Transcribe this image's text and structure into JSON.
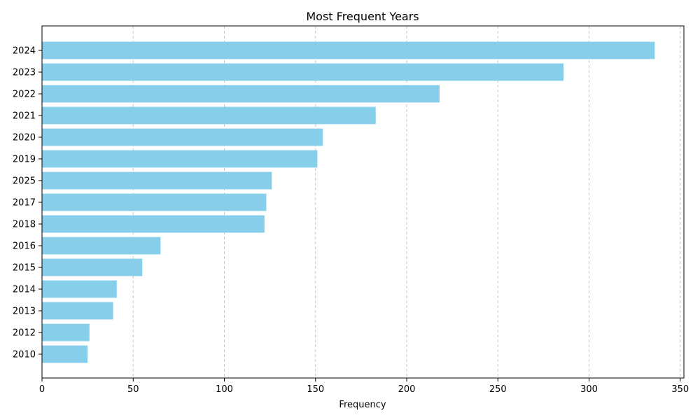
{
  "chart_data": {
    "type": "bar",
    "orientation": "horizontal",
    "title": "Most Frequent Years",
    "xlabel": "Frequency",
    "ylabel": "",
    "categories": [
      "2024",
      "2023",
      "2022",
      "2021",
      "2020",
      "2019",
      "2025",
      "2017",
      "2018",
      "2016",
      "2015",
      "2014",
      "2013",
      "2012",
      "2010"
    ],
    "values": [
      336,
      286,
      218,
      183,
      154,
      151,
      126,
      123,
      122,
      65,
      55,
      41,
      39,
      26,
      25
    ],
    "xlim": [
      0,
      352
    ],
    "xticks": [
      0,
      50,
      100,
      150,
      200,
      250,
      300,
      350
    ],
    "grid": "x-dashed",
    "bar_color": "#87ceeb",
    "grid_color": "#c8c8c8"
  }
}
